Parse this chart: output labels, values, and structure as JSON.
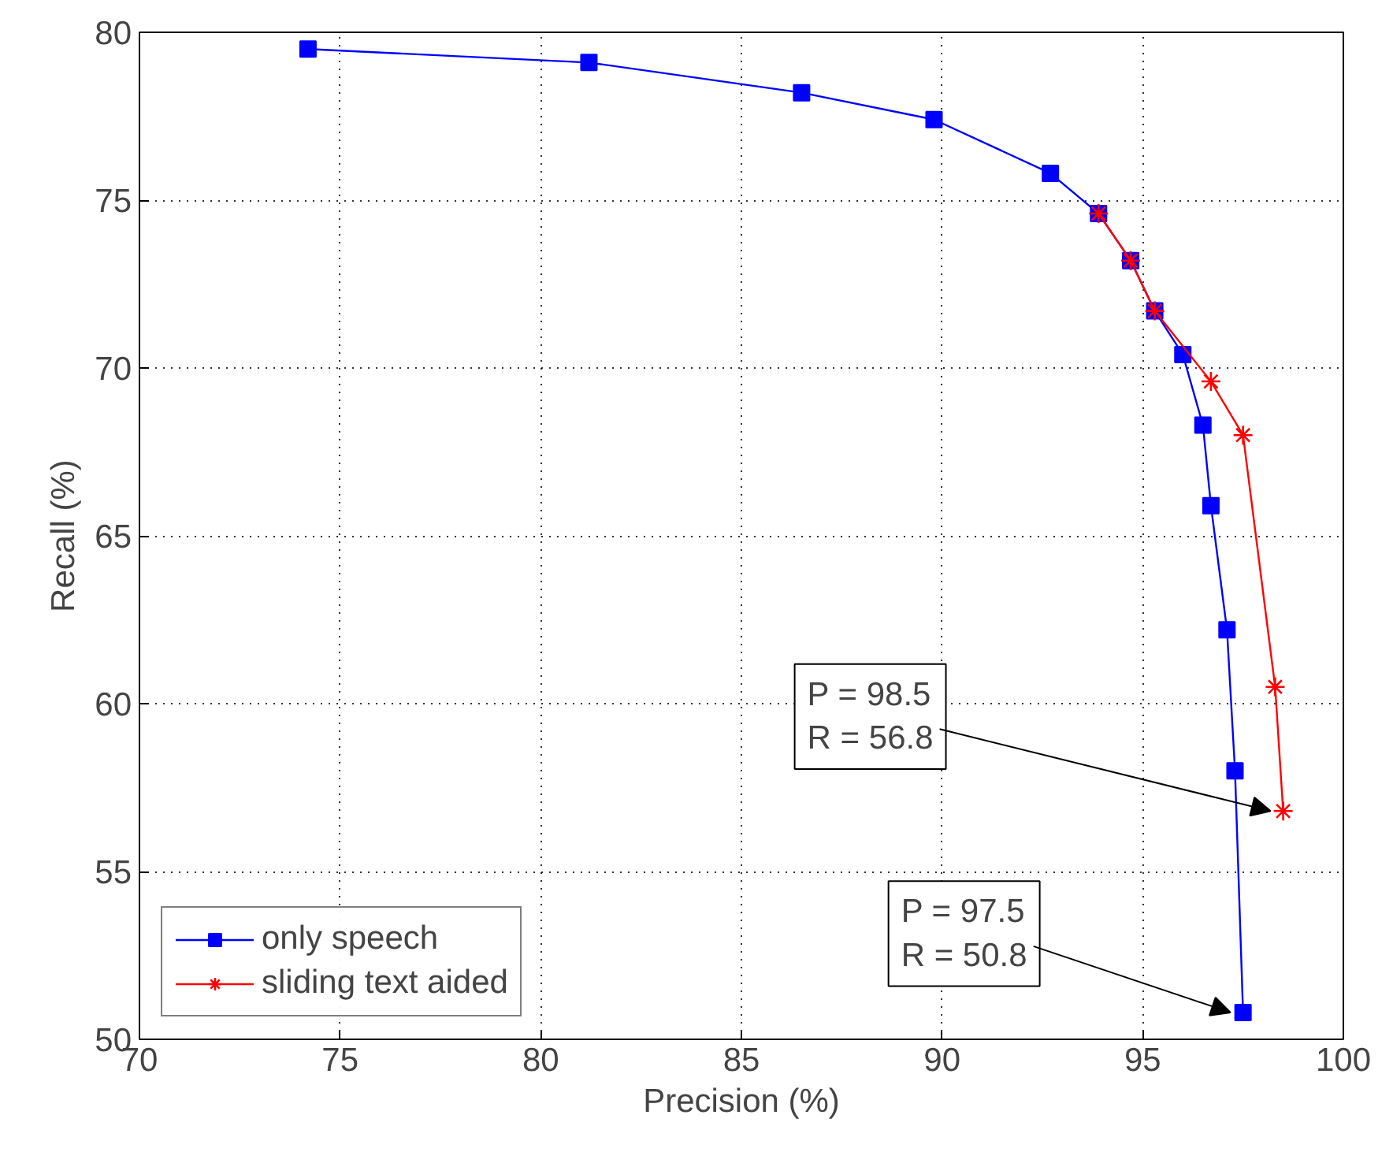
{
  "chart_data": {
    "type": "line",
    "xlabel": "Precision (%)",
    "ylabel": "Recall (%)",
    "xlim": [
      70,
      100
    ],
    "ylim": [
      50,
      80
    ],
    "xticks": [
      70,
      75,
      80,
      85,
      90,
      95,
      100
    ],
    "yticks": [
      50,
      55,
      60,
      65,
      70,
      75,
      80
    ],
    "grid": true,
    "legend": "bottom left",
    "line_style": "solid",
    "series": [
      {
        "name": "only speech",
        "color": "#0000ff",
        "marker": "square",
        "x": [
          74.2,
          81.2,
          86.5,
          89.8,
          92.7,
          93.9,
          94.7,
          95.3,
          96.0,
          96.5,
          96.7,
          97.1,
          97.3,
          97.5
        ],
        "values": [
          79.5,
          79.1,
          78.2,
          77.4,
          75.8,
          74.6,
          73.2,
          71.7,
          70.4,
          68.3,
          65.9,
          62.2,
          58.0,
          50.8
        ]
      },
      {
        "name": "sliding text aided",
        "color": "#ff0000",
        "marker": "cross",
        "x": [
          93.9,
          94.7,
          95.3,
          96.7,
          97.5,
          98.3,
          98.5
        ],
        "values": [
          74.6,
          73.2,
          71.7,
          69.6,
          68.0,
          60.5,
          56.8
        ]
      }
    ],
    "annotations": [
      {
        "text": "P = 98.5\nR = 56.8",
        "x": 98.5,
        "y": 56.8
      },
      {
        "text": "P = 97.5\nR = 50.8",
        "x": 97.5,
        "y": 50.8
      }
    ]
  }
}
